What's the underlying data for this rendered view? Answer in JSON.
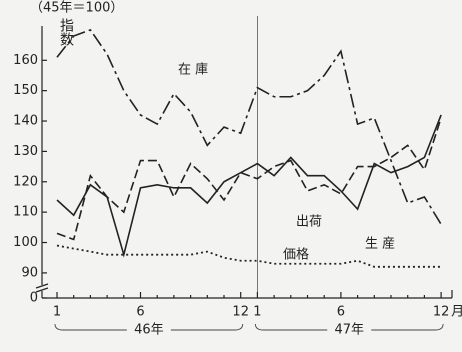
{
  "chart_data": {
    "type": "line",
    "subtitle": "（45年＝100）",
    "y_label": "指数",
    "categories": [
      "1",
      null,
      null,
      null,
      null,
      "6",
      null,
      null,
      null,
      null,
      null,
      "12",
      "1",
      null,
      null,
      null,
      null,
      "6",
      null,
      null,
      null,
      null,
      null,
      "12"
    ],
    "x_unit": "月",
    "periods": [
      {
        "label": "46年",
        "start": 0,
        "end": 11
      },
      {
        "label": "47年",
        "start": 12,
        "end": 23
      }
    ],
    "ylim": [
      0,
      168
    ],
    "ybreak": [
      0,
      87
    ],
    "yticks": [
      0,
      90,
      100,
      110,
      120,
      130,
      140,
      150,
      160
    ],
    "grid": false,
    "series": [
      {
        "name": "在 庫",
        "color": "#222222",
        "dash": "14 4 3 4",
        "values": [
          161,
          168,
          170,
          162,
          150,
          142,
          139,
          149,
          143,
          132,
          138,
          136,
          151,
          148,
          148,
          150,
          155,
          163,
          139,
          141,
          127,
          113,
          115,
          106
        ]
      },
      {
        "name": "出荷",
        "color": "#222222",
        "dash": "none",
        "values": [
          114,
          109,
          119,
          115,
          96,
          118,
          119,
          118,
          118,
          113,
          120,
          123,
          126,
          122,
          128,
          122,
          122,
          117,
          111,
          126,
          123,
          125,
          128,
          142
        ]
      },
      {
        "name": "生 産",
        "color": "#222222",
        "dash": "9 4",
        "values": [
          103,
          101,
          122,
          115,
          110,
          127,
          127,
          115,
          126,
          121,
          114,
          123,
          121,
          125,
          127,
          117,
          119,
          116,
          125,
          125,
          128,
          132,
          124,
          141
        ]
      },
      {
        "name": "価格",
        "color": "#222222",
        "dash": "2 3",
        "values": [
          99,
          98,
          97,
          96,
          96,
          96,
          96,
          96,
          96,
          97,
          95,
          94,
          94,
          93,
          93,
          93,
          93,
          93,
          94,
          92,
          92,
          92,
          92,
          92
        ]
      }
    ]
  }
}
